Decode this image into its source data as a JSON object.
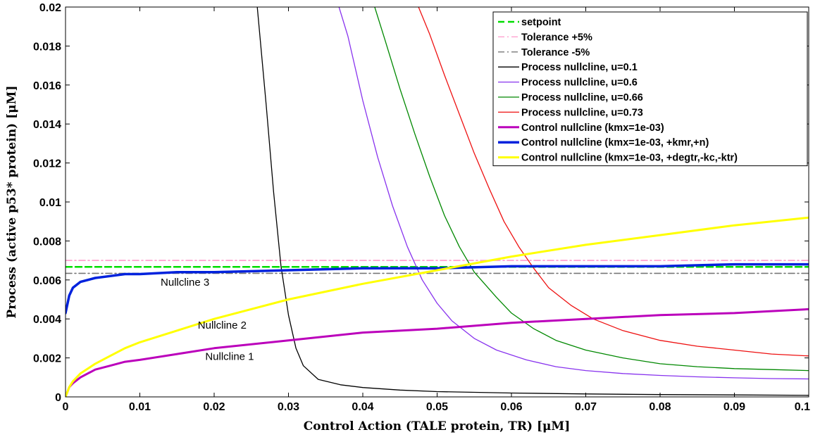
{
  "chart_data": {
    "type": "line",
    "xlabel": "Control Action (TALE protein, TR) [μM]",
    "ylabel": "Process (active p53* protein) [μM]",
    "xlim": [
      0,
      0.1
    ],
    "ylim": [
      0,
      0.02
    ],
    "x_ticks": [
      "0",
      "0.01",
      "0.02",
      "0.03",
      "0.04",
      "0.05",
      "0.06",
      "0.07",
      "0.08",
      "0.09",
      "0.1"
    ],
    "y_ticks": [
      "0",
      "0.002",
      "0.004",
      "0.006",
      "0.008",
      "0.01",
      "0.012",
      "0.014",
      "0.016",
      "0.018",
      "0.02"
    ],
    "grid": false,
    "legend_position": "top-right",
    "series": [
      {
        "name": "setpoint",
        "color": "#00dd00",
        "style": "dashed",
        "x": [
          0,
          0.1
        ],
        "y": [
          0.00667,
          0.00667
        ]
      },
      {
        "name": "Tolerance  +5%",
        "color": "#ff99cc",
        "style": "dashdot",
        "x": [
          0,
          0.1
        ],
        "y": [
          0.007,
          0.007
        ]
      },
      {
        "name": "Tolerance -5%",
        "color": "#777777",
        "style": "dashdot",
        "x": [
          0,
          0.1
        ],
        "y": [
          0.00634,
          0.00634
        ]
      },
      {
        "name": "Process nullcline, u=0.1",
        "color": "#000000",
        "style": "solid",
        "x": [
          0.0258,
          0.027,
          0.028,
          0.029,
          0.03,
          0.031,
          0.032,
          0.034,
          0.037,
          0.04,
          0.045,
          0.05,
          0.06,
          0.07,
          0.08,
          0.09,
          0.1
        ],
        "y": [
          0.02,
          0.015,
          0.0105,
          0.0067,
          0.0042,
          0.0025,
          0.0016,
          0.0009,
          0.00062,
          0.00048,
          0.00035,
          0.00027,
          0.0002,
          0.00015,
          0.00012,
          0.0001,
          8e-05
        ]
      },
      {
        "name": "Process nullcline, u=0.6",
        "color": "#8833ee",
        "style": "solid",
        "x": [
          0.0368,
          0.038,
          0.04,
          0.042,
          0.044,
          0.046,
          0.048,
          0.05,
          0.052,
          0.055,
          0.058,
          0.062,
          0.066,
          0.07,
          0.075,
          0.08,
          0.085,
          0.09,
          0.095,
          0.1
        ],
        "y": [
          0.02,
          0.0185,
          0.0152,
          0.0123,
          0.0098,
          0.0077,
          0.006,
          0.0048,
          0.0039,
          0.003,
          0.0024,
          0.0019,
          0.00155,
          0.00135,
          0.0012,
          0.0011,
          0.00103,
          0.00098,
          0.00094,
          0.00092
        ]
      },
      {
        "name": "Process nullcline, u=0.66",
        "color": "#008800",
        "style": "solid",
        "x": [
          0.0416,
          0.043,
          0.045,
          0.047,
          0.049,
          0.051,
          0.053,
          0.055,
          0.058,
          0.06,
          0.063,
          0.066,
          0.07,
          0.075,
          0.08,
          0.085,
          0.09,
          0.095,
          0.1
        ],
        "y": [
          0.02,
          0.0183,
          0.0158,
          0.0135,
          0.0113,
          0.0093,
          0.0077,
          0.0064,
          0.0051,
          0.0043,
          0.0035,
          0.0029,
          0.0024,
          0.002,
          0.0017,
          0.00155,
          0.00145,
          0.0014,
          0.00135
        ]
      },
      {
        "name": "Process nullcline, u=0.73",
        "color": "#ee1111",
        "style": "solid",
        "x": [
          0.0475,
          0.049,
          0.051,
          0.053,
          0.055,
          0.057,
          0.059,
          0.061,
          0.063,
          0.065,
          0.068,
          0.071,
          0.075,
          0.08,
          0.085,
          0.09,
          0.095,
          0.1
        ],
        "y": [
          0.02,
          0.0186,
          0.0165,
          0.0145,
          0.0125,
          0.0107,
          0.009,
          0.0077,
          0.0066,
          0.0056,
          0.0047,
          0.004,
          0.0034,
          0.0029,
          0.0026,
          0.0024,
          0.0022,
          0.0021
        ]
      },
      {
        "name": "Control nullcline (kmx=1e-03)",
        "color": "#bb00bb",
        "style": "solid",
        "width": 3,
        "x": [
          0,
          0.0005,
          0.001,
          0.002,
          0.004,
          0.006,
          0.008,
          0.01,
          0.015,
          0.02,
          0.03,
          0.04,
          0.05,
          0.06,
          0.07,
          0.08,
          0.09,
          0.1
        ],
        "y": [
          0,
          0.0005,
          0.0007,
          0.001,
          0.0014,
          0.0016,
          0.0018,
          0.0019,
          0.0022,
          0.0025,
          0.0029,
          0.0033,
          0.0035,
          0.0038,
          0.004,
          0.0042,
          0.0043,
          0.0045
        ]
      },
      {
        "name": "Control nullcline (kmx=1e-03, +kmr,+n)",
        "color": "#0022dd",
        "style": "solid",
        "width": 3.5,
        "x": [
          0,
          0.0005,
          0.001,
          0.002,
          0.004,
          0.006,
          0.008,
          0.01,
          0.015,
          0.02,
          0.03,
          0.04,
          0.05,
          0.06,
          0.07,
          0.08,
          0.09,
          0.1
        ],
        "y": [
          0.0043,
          0.0052,
          0.0056,
          0.0059,
          0.0061,
          0.0062,
          0.0063,
          0.0063,
          0.0064,
          0.0064,
          0.0065,
          0.0066,
          0.0066,
          0.0067,
          0.0067,
          0.0067,
          0.0068,
          0.0068
        ]
      },
      {
        "name": "Control nullcline (kmx=1e-03, +degtr,-kc,-ktr)",
        "color": "#ffff00",
        "style": "solid",
        "width": 3,
        "x": [
          0,
          0.0005,
          0.001,
          0.002,
          0.004,
          0.006,
          0.008,
          0.01,
          0.015,
          0.02,
          0.03,
          0.04,
          0.05,
          0.06,
          0.07,
          0.08,
          0.09,
          0.1
        ],
        "y": [
          0,
          0.0005,
          0.0008,
          0.0012,
          0.0017,
          0.0021,
          0.0025,
          0.0028,
          0.0034,
          0.004,
          0.005,
          0.0058,
          0.0065,
          0.0072,
          0.0078,
          0.0083,
          0.0088,
          0.0092
        ]
      }
    ],
    "annotations": [
      {
        "text": "Nullcline 3",
        "x": 0.0128,
        "y": 0.0057
      },
      {
        "text": "Nullcline 2",
        "x": 0.0178,
        "y": 0.0035
      },
      {
        "text": "Nullcline 1",
        "x": 0.0188,
        "y": 0.0019
      }
    ]
  }
}
